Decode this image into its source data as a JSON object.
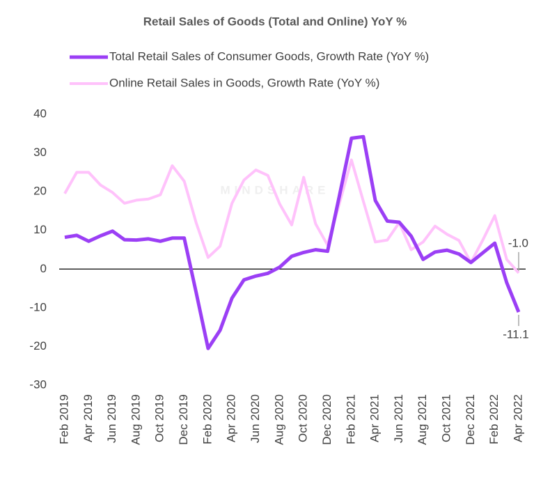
{
  "chart_data": {
    "type": "line",
    "title": "Retail Sales of Goods (Total and Online) YoY %",
    "watermark": "MINDSHARE",
    "categories": [
      "Feb 2019",
      null,
      "Apr 2019",
      null,
      "Jun 2019",
      null,
      "Aug 2019",
      null,
      "Oct 2019",
      null,
      "Dec 2019",
      null,
      "Feb 2020",
      null,
      "Apr 2020",
      null,
      "Jun 2020",
      null,
      "Aug 2020",
      null,
      "Oct 2020",
      null,
      "Dec 2020",
      null,
      "Feb 2021",
      null,
      "Apr 2021",
      null,
      "Jun 2021",
      null,
      "Aug 2021",
      null,
      "Oct 2021",
      null,
      "Dec 2021",
      null,
      "Feb 2022",
      null,
      "Apr 2022"
    ],
    "series": [
      {
        "name": "Total Retail Sales of Consumer Goods, Growth Rate (YoY %)",
        "color": "#9b3ff5",
        "values": [
          8.2,
          8.7,
          7.2,
          8.6,
          9.8,
          7.6,
          7.5,
          7.8,
          7.2,
          8.0,
          8.0,
          -6.0,
          -20.5,
          -15.8,
          -7.5,
          -2.8,
          -1.8,
          -1.1,
          0.5,
          3.3,
          4.3,
          5.0,
          4.6,
          19.0,
          33.8,
          34.2,
          17.7,
          12.4,
          12.1,
          8.5,
          2.5,
          4.4,
          4.9,
          3.9,
          1.7,
          4.2,
          6.7,
          -3.5,
          -11.1
        ]
      },
      {
        "name": "Online Retail Sales in Goods, Growth Rate (YoY %)",
        "color": "#ffc2fb",
        "values": [
          19.5,
          25.0,
          25.0,
          21.7,
          19.8,
          17.0,
          17.8,
          18.1,
          19.2,
          26.7,
          22.7,
          12.0,
          3.0,
          5.9,
          17.0,
          23.0,
          25.6,
          24.2,
          16.8,
          11.4,
          23.7,
          11.7,
          6.2,
          17.0,
          28.2,
          17.5,
          7.0,
          7.5,
          12.0,
          5.0,
          7.0,
          11.1,
          9.0,
          7.4,
          1.7,
          7.5,
          13.8,
          2.5,
          -1.0
        ],
        "value_labels": [
          null,
          null,
          null,
          null,
          null,
          null,
          null,
          null,
          null,
          null,
          null,
          null,
          null,
          null,
          null,
          null,
          null,
          null,
          null,
          null,
          null,
          null,
          null,
          null,
          null,
          null,
          null,
          null,
          null,
          null,
          null,
          null,
          null,
          null,
          null,
          null,
          null,
          null,
          "-1.0"
        ]
      }
    ],
    "ylim": [
      -30,
      40
    ],
    "yticks": [
      -30,
      -20,
      -10,
      0,
      10,
      20,
      30,
      40
    ],
    "grid": false
  }
}
